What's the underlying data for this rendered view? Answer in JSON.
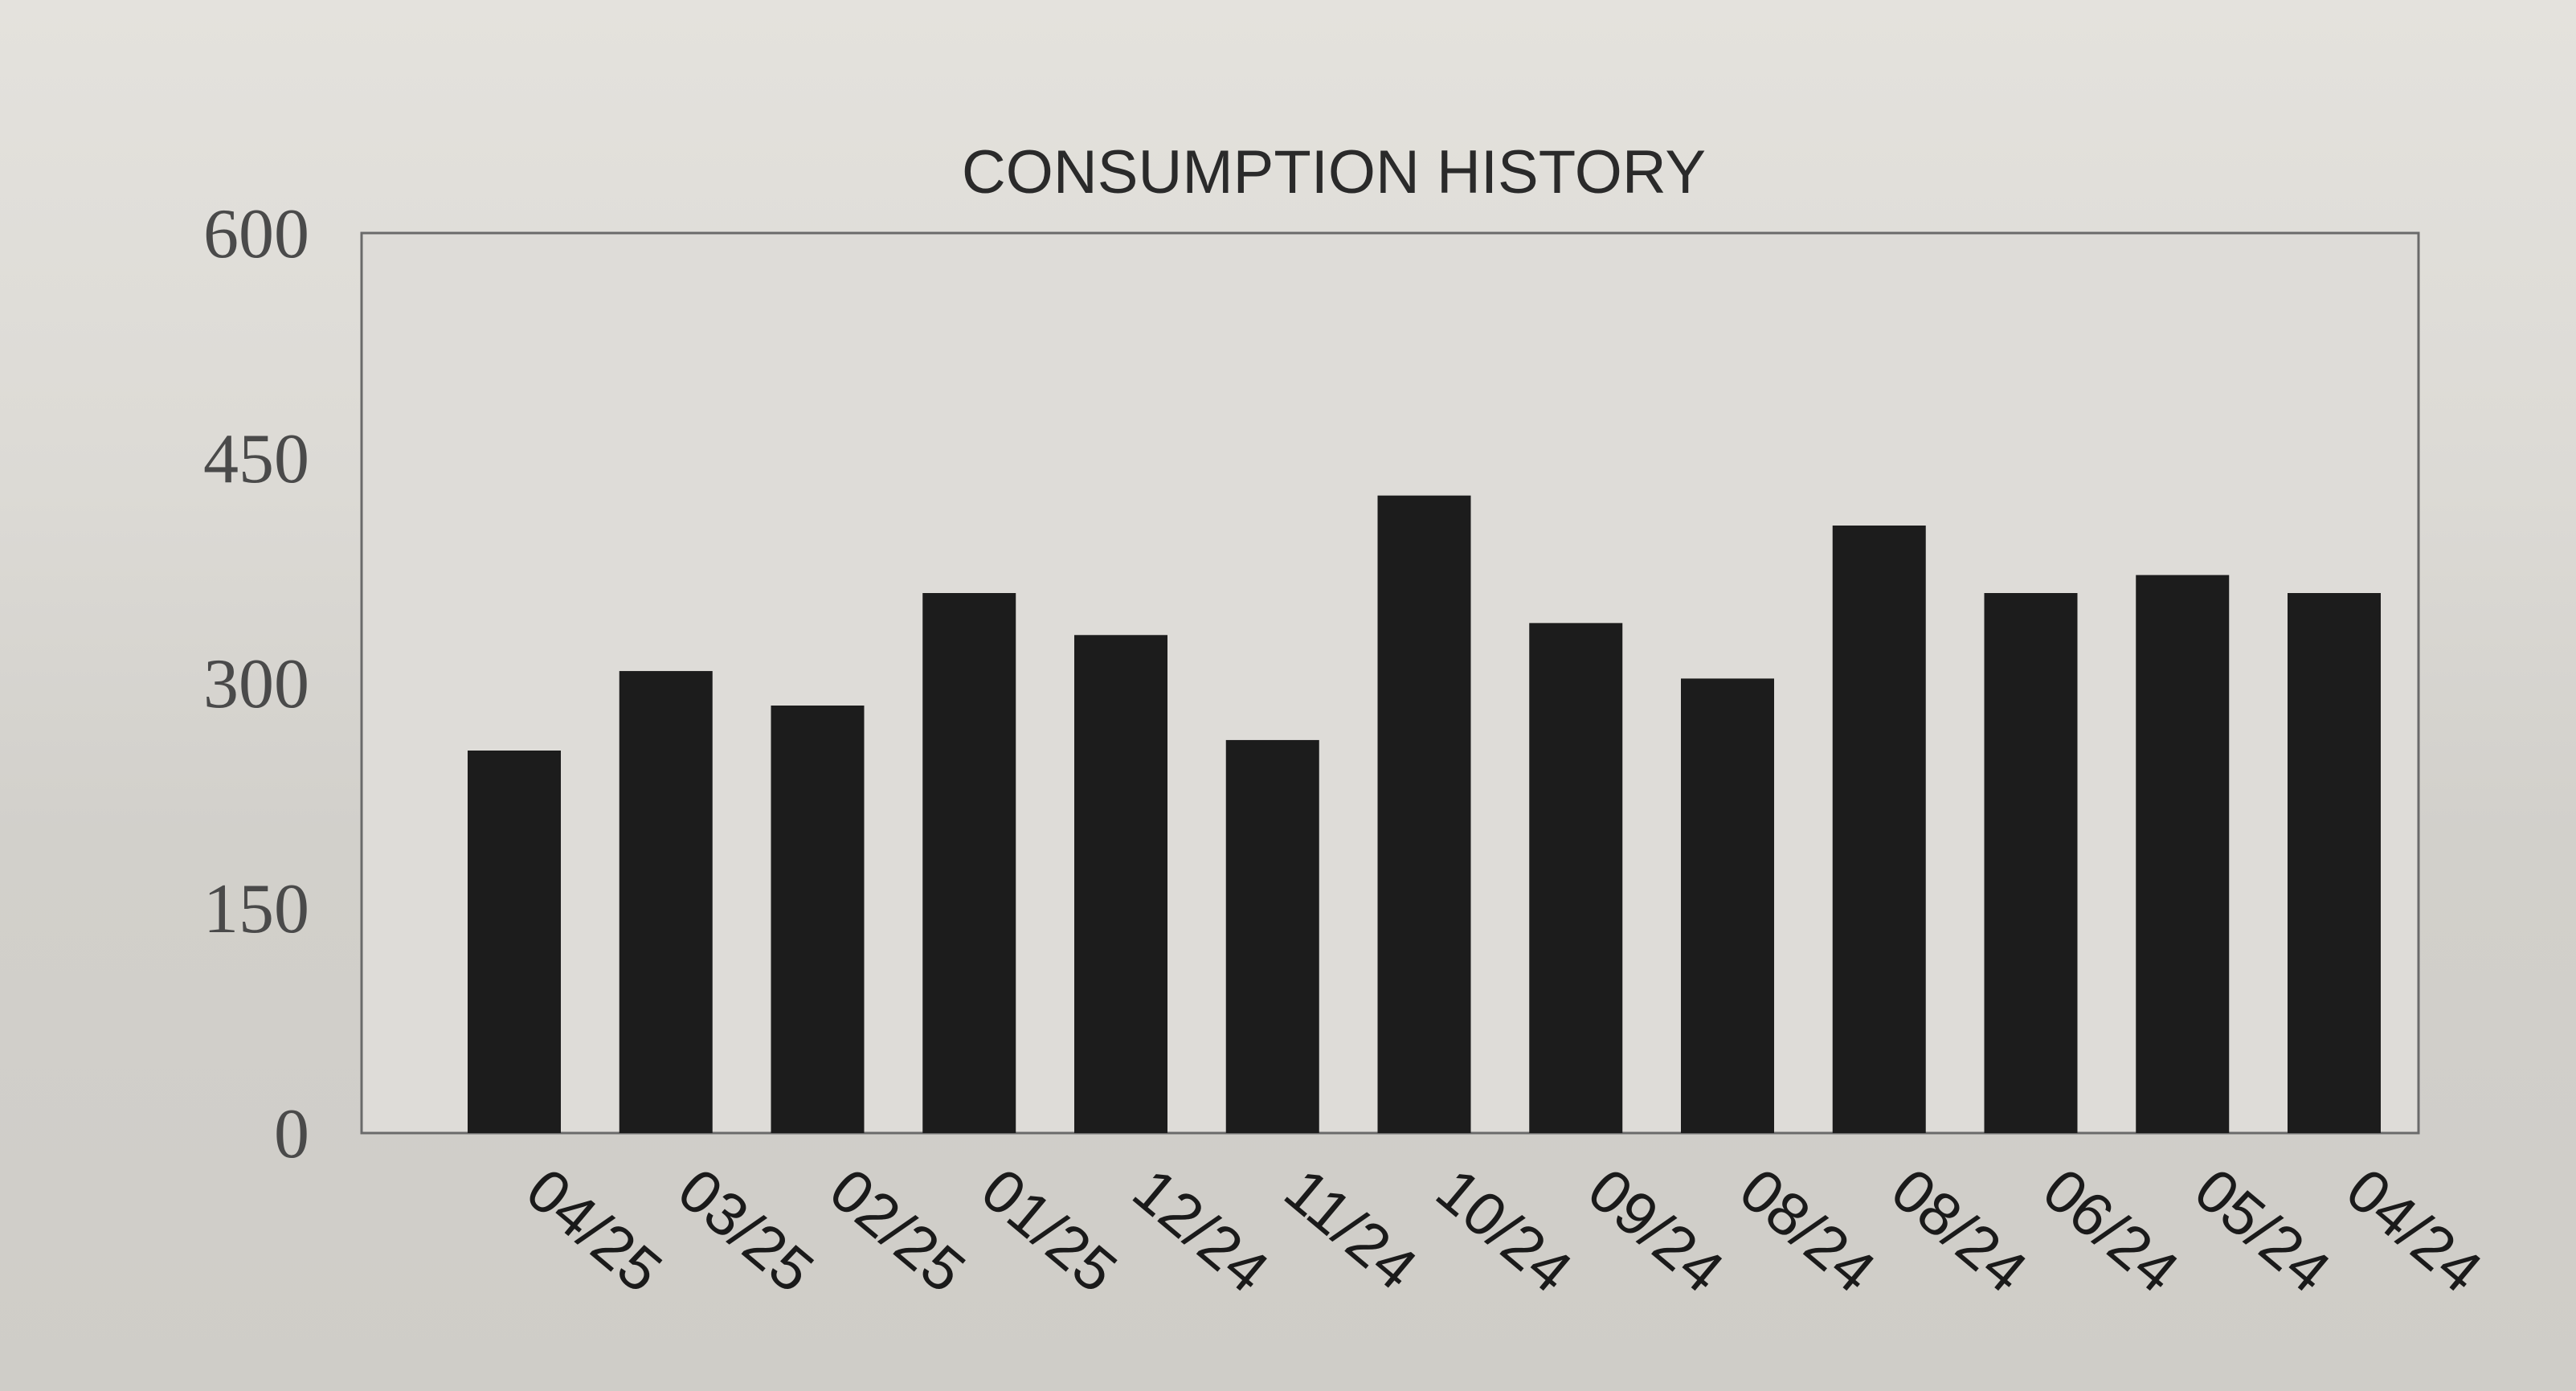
{
  "chart_data": {
    "type": "bar",
    "title": "CONSUMPTION HISTORY",
    "xlabel": "",
    "ylabel": "",
    "ylim": [
      0,
      600
    ],
    "yticks": [
      "0",
      "150",
      "300",
      "450",
      "600"
    ],
    "grid": false,
    "categories": [
      "04/25",
      "03/25",
      "02/25",
      "01/25",
      "12/24",
      "11/24",
      "10/24",
      "09/24",
      "08/24",
      "08/24",
      "06/24",
      "05/24",
      "04/24"
    ],
    "values": [
      255,
      308,
      285,
      360,
      332,
      262,
      425,
      340,
      303,
      405,
      360,
      372,
      360
    ],
    "colors": {
      "bar": "#1c1c1c",
      "frame": "#6a6a6a",
      "plot_bg": "#dedcd8"
    }
  }
}
